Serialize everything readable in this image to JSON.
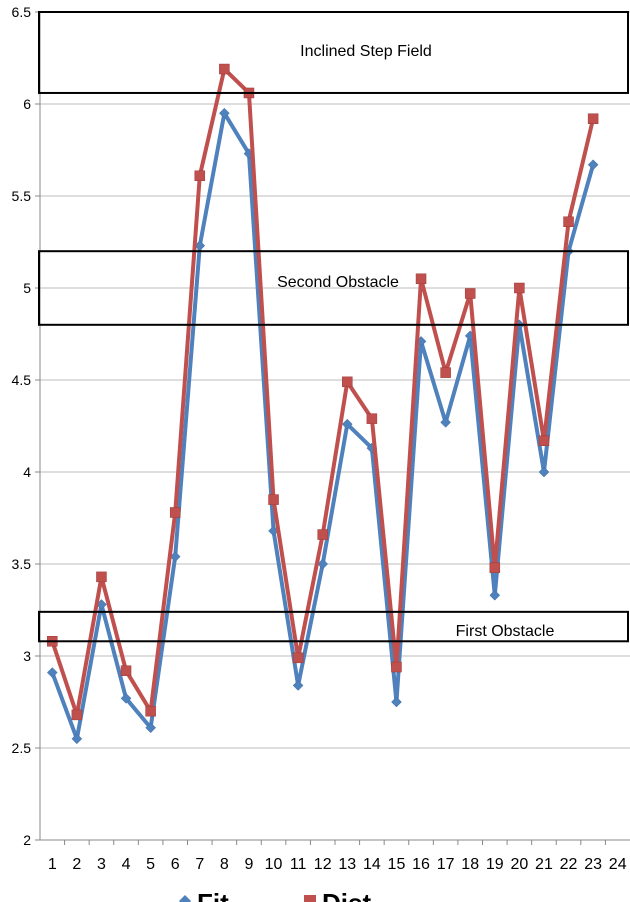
{
  "chart_data": {
    "type": "line",
    "x": [
      1,
      2,
      3,
      4,
      5,
      6,
      7,
      8,
      9,
      10,
      11,
      12,
      13,
      14,
      15,
      16,
      17,
      18,
      19,
      20,
      21,
      22,
      23
    ],
    "x_ticks": [
      "1",
      "2",
      "3",
      "4",
      "5",
      "6",
      "7",
      "8",
      "9",
      "10",
      "11",
      "12",
      "13",
      "14",
      "15",
      "16",
      "17",
      "18",
      "19",
      "20",
      "21",
      "22",
      "23",
      "24"
    ],
    "y_ticks": [
      "2",
      "2.5",
      "3",
      "3.5",
      "4",
      "4.5",
      "5",
      "5.5",
      "6",
      "6.5"
    ],
    "ylim": [
      2,
      6.5
    ],
    "xlim": [
      0.5,
      24.5
    ],
    "grid": "horizontal",
    "legend_position": "bottom",
    "series": [
      {
        "name": "Fit",
        "color": "#4f81bd",
        "marker": "diamond",
        "values": [
          2.91,
          2.55,
          3.28,
          2.77,
          2.61,
          3.54,
          5.23,
          5.95,
          5.73,
          3.68,
          2.84,
          3.5,
          4.26,
          4.13,
          2.75,
          4.71,
          4.27,
          4.74,
          3.33,
          4.8,
          4.0,
          5.2,
          5.67
        ]
      },
      {
        "name": "Dist",
        "color": "#c0504d",
        "marker": "square",
        "values": [
          3.08,
          2.68,
          3.43,
          2.92,
          2.7,
          3.78,
          5.61,
          6.19,
          6.06,
          3.85,
          2.99,
          3.66,
          4.49,
          4.29,
          2.94,
          5.05,
          4.54,
          4.97,
          3.48,
          5.0,
          4.17,
          5.36,
          5.92
        ]
      }
    ],
    "annotations": [
      {
        "label": "Inclined Step Field",
        "y_range": [
          6.06,
          6.5
        ]
      },
      {
        "label": "Second Obstacle",
        "y_range": [
          4.8,
          5.2
        ]
      },
      {
        "label": "First Obstacle",
        "y_range": [
          3.08,
          3.24
        ]
      }
    ]
  }
}
